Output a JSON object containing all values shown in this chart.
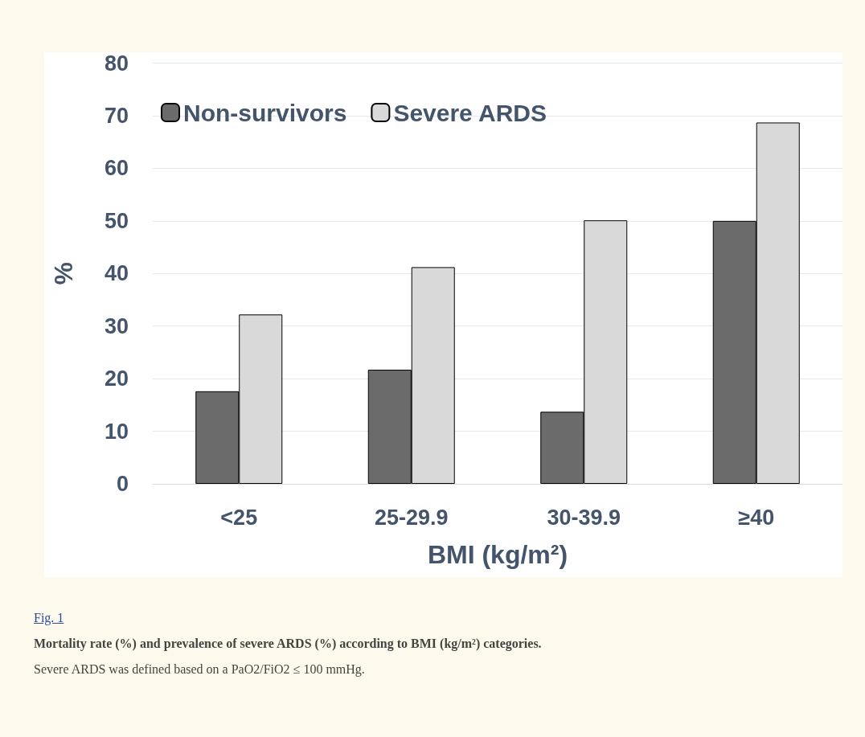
{
  "chart_data": {
    "type": "bar",
    "xlabel": "BMI (kg/m²)",
    "ylabel": "%",
    "categories": [
      "<25",
      "25-29.9",
      "30-39.9",
      "≥40"
    ],
    "series": [
      {
        "name": "Non-survivors",
        "color": "#6b6b6b",
        "values": [
          17.6,
          21.7,
          13.7,
          50
        ]
      },
      {
        "name": "Severe ARDS",
        "color": "#d9d9d9",
        "values": [
          32.2,
          41.2,
          50.1,
          68.7
        ]
      }
    ],
    "ylim": [
      0,
      80
    ],
    "yticks": [
      0,
      10,
      20,
      30,
      40,
      50,
      60,
      70,
      80
    ],
    "grid": "y",
    "legend": "top left",
    "annotations": [
      "Fig. 1",
      "Mortality rate (%) and prevalence of severe ARDS (%) according to BMI (kg/m²) categories.",
      "Severe ARDS was defined based on a PaO2/FiO2 ≤ 100 mmHg."
    ]
  }
}
